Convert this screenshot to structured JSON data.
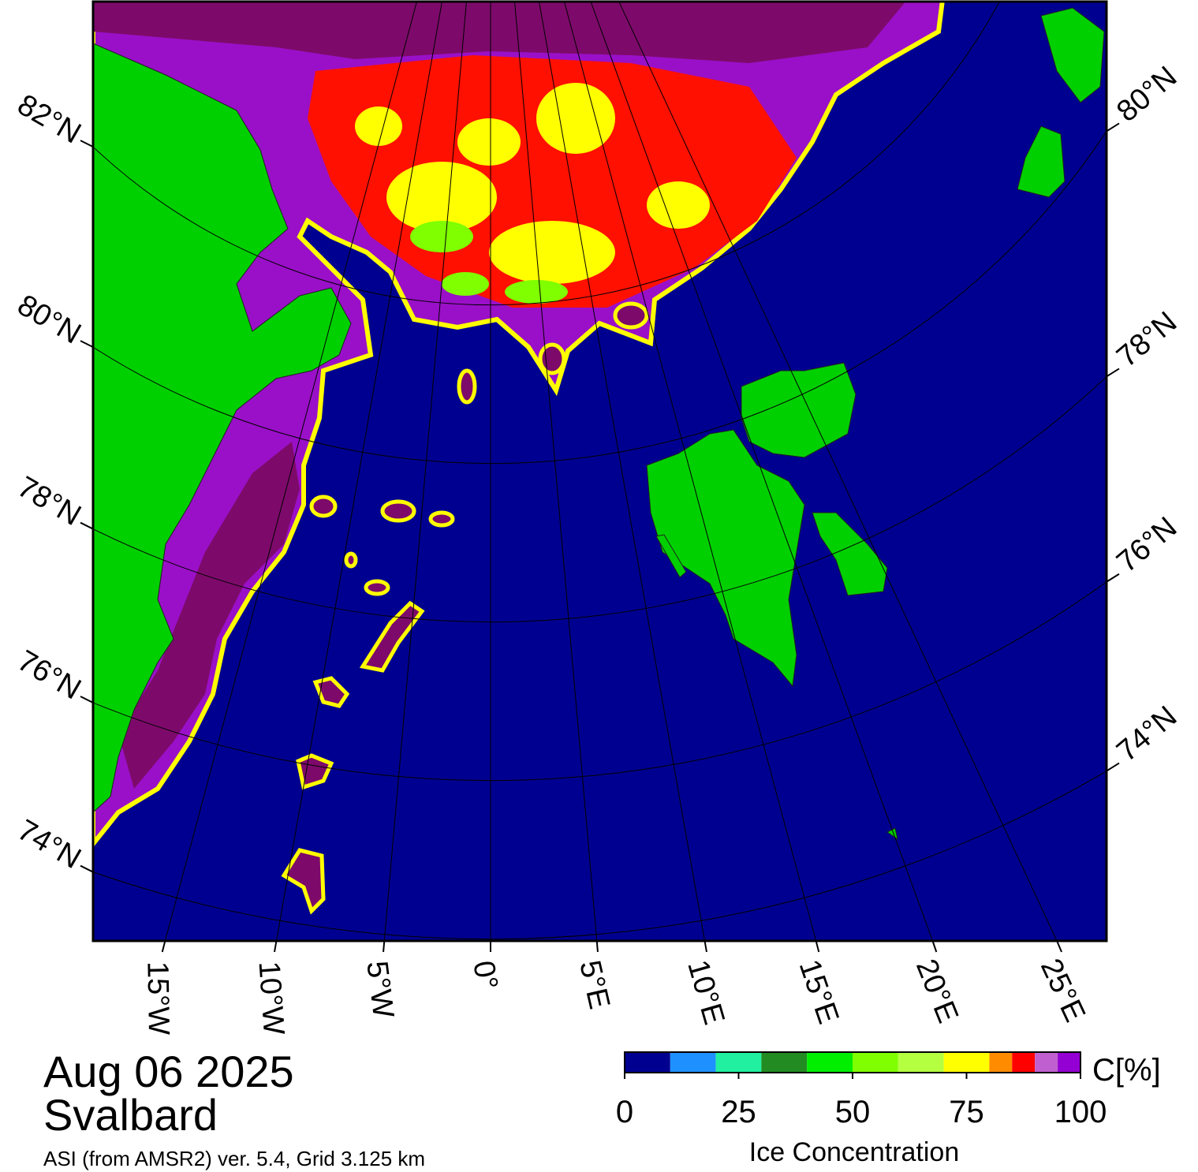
{
  "header": {
    "date": "Aug 06 2025",
    "region": "Svalbard",
    "source": "ASI (from AMSR2) ver. 5.4,  Grid 3.125 km"
  },
  "map": {
    "lat_ticks_left": [
      {
        "value": 82,
        "label": "82°N"
      },
      {
        "value": 80,
        "label": "80°N"
      },
      {
        "value": 78,
        "label": "78°N"
      },
      {
        "value": 76,
        "label": "76°N"
      },
      {
        "value": 74,
        "label": "74°N"
      }
    ],
    "lat_ticks_right": [
      {
        "value": 80,
        "label": "80°N"
      },
      {
        "value": 78,
        "label": "78°N"
      },
      {
        "value": 76,
        "label": "76°N"
      },
      {
        "value": 74,
        "label": "74°N"
      }
    ],
    "lon_ticks": [
      {
        "value": -15,
        "label": "15°W"
      },
      {
        "value": -10,
        "label": "10°W"
      },
      {
        "value": -5,
        "label": "5°W"
      },
      {
        "value": 0,
        "label": "0°"
      },
      {
        "value": 5,
        "label": "5°E"
      },
      {
        "value": 10,
        "label": "10°E"
      },
      {
        "value": 15,
        "label": "15°E"
      },
      {
        "value": 20,
        "label": "20°E"
      },
      {
        "value": 25,
        "label": "25°E"
      }
    ]
  },
  "colorbar": {
    "label": "C[%]",
    "title": "Ice Concentration",
    "range": [
      0,
      100
    ],
    "ticks": [
      0,
      25,
      50,
      75,
      100
    ],
    "bounds": [
      0,
      10,
      20,
      30,
      40,
      50,
      60,
      70,
      80,
      85,
      90,
      95,
      100
    ],
    "colors": [
      "#000090",
      "#1e90ff",
      "#20f0a0",
      "#228b22",
      "#00ee00",
      "#7fff00",
      "#b4ff40",
      "#ffff00",
      "#ff8c00",
      "#ff0000",
      "#c060d0",
      "#9400d3"
    ]
  }
}
